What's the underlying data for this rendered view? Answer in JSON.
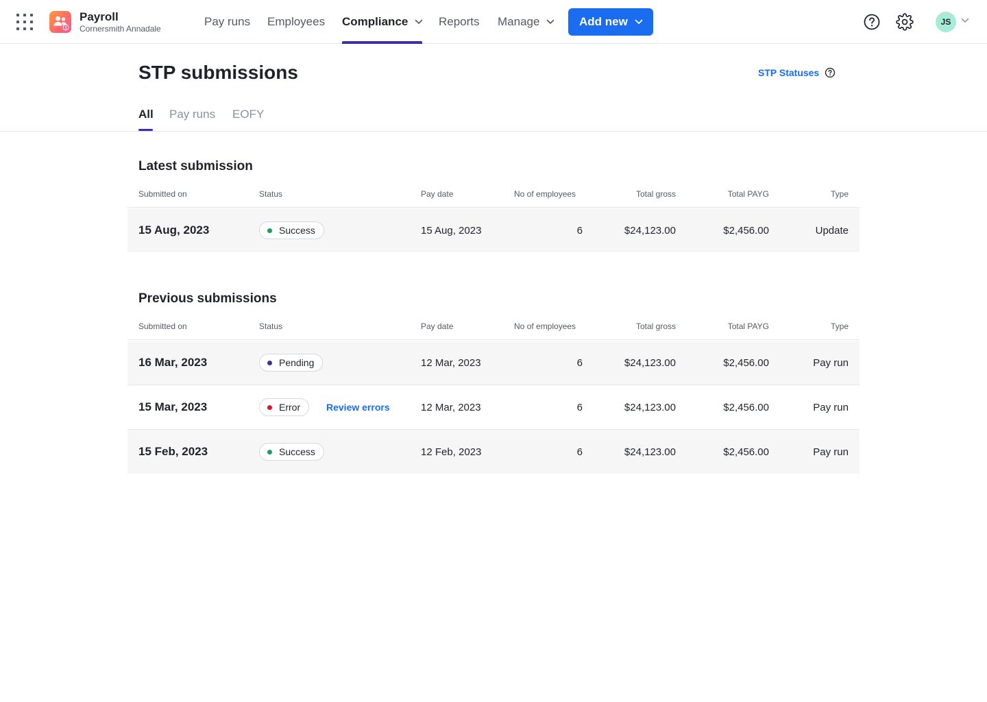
{
  "app": {
    "name": "Payroll",
    "organisation": "Cornersmith Annadale",
    "icons": {
      "apps": "apps-grid-icon",
      "logo": "payroll-people-icon"
    }
  },
  "nav": {
    "items": [
      {
        "label": "Pay runs",
        "active": false,
        "dropdown": false
      },
      {
        "label": "Employees",
        "active": false,
        "dropdown": false
      },
      {
        "label": "Compliance",
        "active": true,
        "dropdown": true
      },
      {
        "label": "Reports",
        "active": false,
        "dropdown": false
      },
      {
        "label": "Manage",
        "active": false,
        "dropdown": true
      }
    ],
    "add_new_label": "Add new",
    "user_initials": "JS",
    "colors": {
      "accent": "#1a6cf0",
      "active_underline": "#3d2fa8",
      "avatar_bg": "#a8ecd6"
    }
  },
  "page": {
    "title": "STP submissions",
    "statuses_link": "STP Statuses",
    "tabs": [
      {
        "label": "All",
        "active": true
      },
      {
        "label": "Pay runs",
        "active": false
      },
      {
        "label": "EOFY",
        "active": false
      }
    ]
  },
  "columns": {
    "submitted_on": "Submitted on",
    "status": "Status",
    "pay_date": "Pay date",
    "employees": "No of employees",
    "total_gross": "Total gross",
    "total_payg": "Total PAYG",
    "type": "Type"
  },
  "latest": {
    "title": "Latest submission",
    "rows": [
      {
        "submitted_on": "15 Aug, 2023",
        "status": "Success",
        "status_color": "#1a9e5f",
        "pay_date": "15 Aug, 2023",
        "employees": "6",
        "total_gross": "$24,123.00",
        "total_payg": "$2,456.00",
        "type": "Update"
      }
    ]
  },
  "previous": {
    "title": "Previous submissions",
    "review_errors_label": "Review errors",
    "rows": [
      {
        "submitted_on": "16 Mar, 2023",
        "status": "Pending",
        "status_color": "#3d2fa8",
        "pay_date": "12 Mar, 2023",
        "employees": "6",
        "total_gross": "$24,123.00",
        "total_payg": "$2,456.00",
        "type": "Pay run"
      },
      {
        "submitted_on": "15 Mar, 2023",
        "status": "Error",
        "status_color": "#e0132c",
        "pay_date": "12 Mar, 2023",
        "employees": "6",
        "total_gross": "$24,123.00",
        "total_payg": "$2,456.00",
        "type": "Pay run"
      },
      {
        "submitted_on": "15 Feb, 2023",
        "status": "Success",
        "status_color": "#1a9e5f",
        "pay_date": "12 Feb, 2023",
        "employees": "6",
        "total_gross": "$24,123.00",
        "total_payg": "$2,456.00",
        "type": "Pay run"
      }
    ]
  }
}
